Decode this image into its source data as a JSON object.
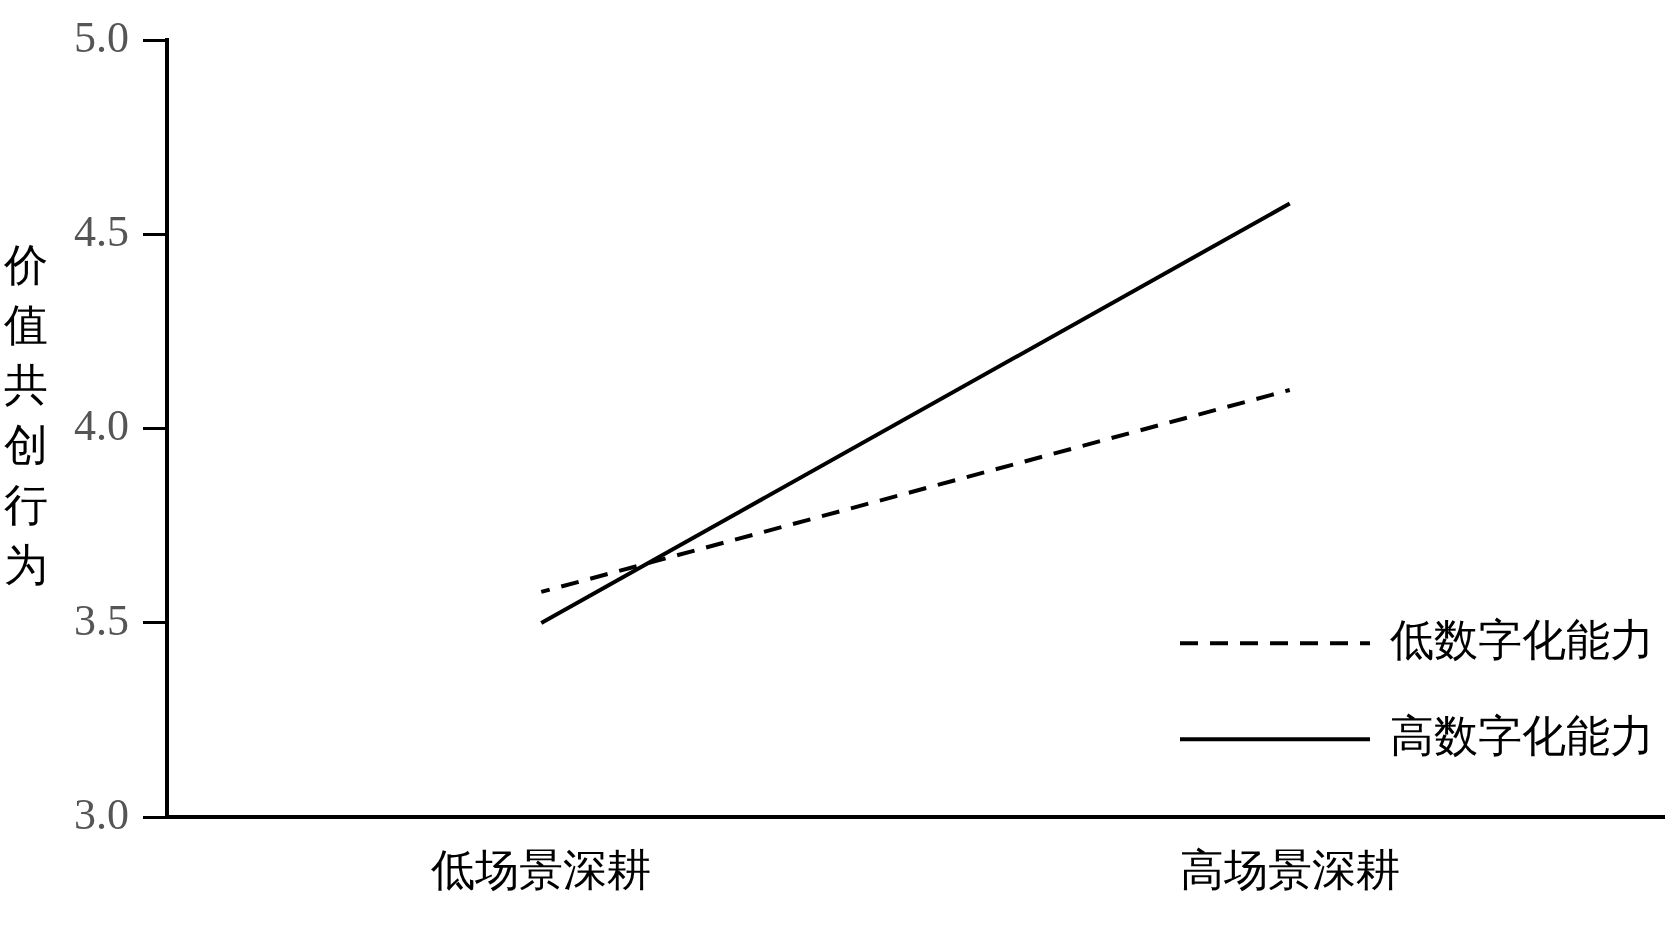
{
  "chart_data": {
    "type": "line",
    "ylabel": "价值共创行为",
    "categories": [
      "低场景深耕",
      "高场景深耕"
    ],
    "series": [
      {
        "name": "低数字化能力",
        "color": "#000000",
        "values": [
          3.58,
          4.1
        ],
        "line_style": "dashed"
      },
      {
        "name": "高数字化能力",
        "color": "#000000",
        "values": [
          3.5,
          4.58
        ],
        "line_style": "solid"
      }
    ],
    "ylim": [
      3.0,
      5.0
    ],
    "yticks": [
      {
        "value": 3.0,
        "label": "3.0"
      },
      {
        "value": 3.5,
        "label": "3.5"
      },
      {
        "value": 4.0,
        "label": "4.0"
      },
      {
        "value": 4.5,
        "label": "4.5"
      },
      {
        "value": 5.0,
        "label": "5.0"
      }
    ],
    "grid": false,
    "legend": "bottom right",
    "marker": "none"
  }
}
